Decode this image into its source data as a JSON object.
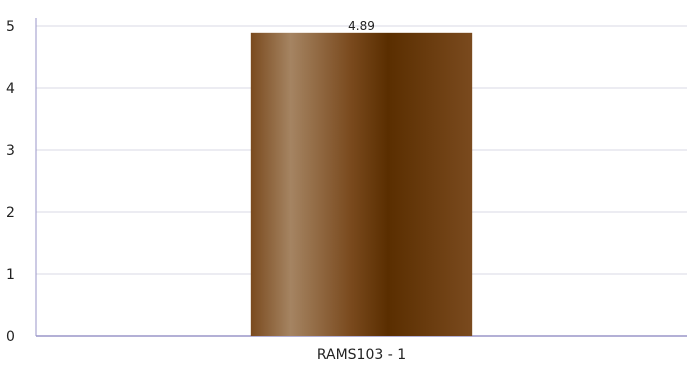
{
  "chart_data": {
    "type": "bar",
    "categories": [
      "RAMS103 - 1"
    ],
    "values": [
      4.89
    ],
    "data_labels": [
      "4.89"
    ],
    "ylim": [
      0,
      5
    ],
    "y_ticks": [
      "0",
      "1",
      "2",
      "3",
      "4",
      "5"
    ],
    "grid": true,
    "legend": "none",
    "colors": {
      "bar_dark": "#5a2e00",
      "bar_mid": "#7a4a1e",
      "bar_light": "#a58462",
      "grid": "#d8d8e4",
      "axis": "#9a96c8"
    }
  }
}
